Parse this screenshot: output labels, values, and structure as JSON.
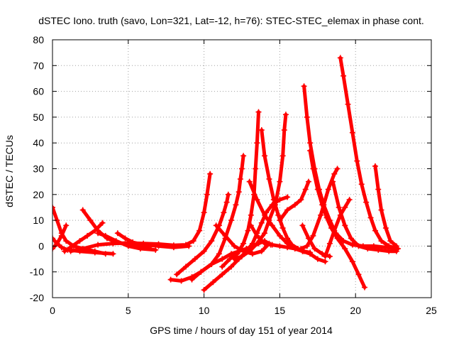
{
  "chart_data": {
    "type": "scatter",
    "title": "dSTEC Iono. truth (savo, Lon=321, Lat=-12, h=76): STEC-STEC_elemax in phase cont.",
    "xlabel": "GPS time / hours of day 151 of year 2014",
    "ylabel": "dSTEC  / TECUs",
    "xlim": [
      0,
      25
    ],
    "ylim": [
      -20,
      80
    ],
    "xticks": [
      0,
      5,
      10,
      15,
      20,
      25
    ],
    "yticks": [
      -20,
      -10,
      0,
      10,
      20,
      30,
      40,
      50,
      60,
      70,
      80
    ],
    "grid": true,
    "marker": "plus",
    "color": "#ff0000",
    "series": [
      {
        "points": [
          [
            0.0,
            15
          ],
          [
            0.3,
            10
          ],
          [
            0.6,
            5
          ],
          [
            0.9,
            2
          ],
          [
            1.4,
            0
          ],
          [
            2.0,
            -1
          ],
          [
            2.8,
            -2
          ],
          [
            3.5,
            -3
          ]
        ]
      },
      {
        "points": [
          [
            0.0,
            3
          ],
          [
            0.3,
            1
          ],
          [
            0.6,
            -0.5
          ],
          [
            1.0,
            -1.5
          ],
          [
            1.8,
            -2
          ],
          [
            2.8,
            -2.5
          ],
          [
            4.0,
            -3
          ]
        ]
      },
      {
        "points": [
          [
            0.0,
            -1
          ],
          [
            0.3,
            1
          ],
          [
            0.6,
            4
          ],
          [
            0.9,
            8
          ]
        ]
      },
      {
        "points": [
          [
            0.8,
            -2
          ],
          [
            1.3,
            0
          ],
          [
            1.8,
            2
          ],
          [
            2.3,
            4
          ],
          [
            2.8,
            6
          ],
          [
            3.3,
            9
          ]
        ]
      },
      {
        "points": [
          [
            2.0,
            14
          ],
          [
            2.5,
            10
          ],
          [
            3.0,
            6
          ],
          [
            3.6,
            3
          ],
          [
            4.2,
            1.5
          ],
          [
            5.0,
            0.5
          ],
          [
            5.8,
            0
          ],
          [
            6.5,
            0
          ]
        ]
      },
      {
        "points": [
          [
            3.0,
            5
          ],
          [
            3.5,
            4
          ],
          [
            4.2,
            2
          ],
          [
            5.0,
            0
          ],
          [
            5.8,
            -1
          ],
          [
            6.8,
            -1.5
          ]
        ]
      },
      {
        "points": [
          [
            4.3,
            5
          ],
          [
            4.8,
            3
          ],
          [
            5.3,
            1.5
          ],
          [
            6.0,
            0.5
          ],
          [
            7.0,
            0
          ],
          [
            8.0,
            -0.5
          ],
          [
            9.0,
            0
          ]
        ]
      },
      {
        "points": [
          [
            1.2,
            -2
          ],
          [
            2.0,
            -1
          ],
          [
            3.0,
            0.5
          ],
          [
            4.0,
            1
          ],
          [
            5.0,
            1.2
          ],
          [
            6.0,
            1
          ],
          [
            7.0,
            0.8
          ],
          [
            8.0,
            0.3
          ],
          [
            8.8,
            0.5
          ],
          [
            9.3,
            2
          ],
          [
            9.7,
            6
          ],
          [
            10.0,
            13
          ],
          [
            10.2,
            20
          ],
          [
            10.4,
            28
          ]
        ]
      },
      {
        "points": [
          [
            7.8,
            -13
          ],
          [
            8.5,
            -13.5
          ],
          [
            9.2,
            -12
          ],
          [
            9.8,
            -10
          ],
          [
            10.5,
            -7
          ],
          [
            11.0,
            -3
          ],
          [
            11.4,
            3
          ],
          [
            11.8,
            10
          ],
          [
            12.1,
            16
          ],
          [
            12.3,
            21
          ],
          [
            12.4,
            26
          ],
          [
            12.5,
            30
          ],
          [
            12.6,
            35
          ]
        ]
      },
      {
        "points": [
          [
            8.2,
            -11
          ],
          [
            8.8,
            -8
          ],
          [
            9.4,
            -5
          ],
          [
            10.0,
            -2
          ],
          [
            10.5,
            2
          ],
          [
            11.0,
            8
          ],
          [
            11.3,
            13
          ],
          [
            11.5,
            17
          ],
          [
            11.6,
            20
          ]
        ]
      },
      {
        "points": [
          [
            9.2,
            -13
          ],
          [
            9.8,
            -10
          ],
          [
            10.5,
            -7
          ],
          [
            11.2,
            -5
          ],
          [
            11.8,
            -3
          ],
          [
            12.3,
            -2
          ],
          [
            12.8,
            -1
          ],
          [
            13.2,
            0
          ],
          [
            13.6,
            1
          ],
          [
            14.0,
            2
          ],
          [
            14.4,
            0.5
          ]
        ]
      },
      {
        "points": [
          [
            10.0,
            -17
          ],
          [
            10.6,
            -14
          ],
          [
            11.2,
            -11
          ],
          [
            11.8,
            -8
          ],
          [
            12.3,
            -5
          ],
          [
            12.8,
            -2
          ],
          [
            13.2,
            1
          ],
          [
            13.5,
            5
          ],
          [
            13.8,
            9
          ],
          [
            14.1,
            13
          ],
          [
            14.5,
            16
          ],
          [
            15.0,
            18
          ],
          [
            15.5,
            19
          ]
        ]
      },
      {
        "points": [
          [
            11.2,
            -8
          ],
          [
            11.7,
            -5
          ],
          [
            12.2,
            -3
          ],
          [
            12.6,
            1
          ],
          [
            12.9,
            6
          ],
          [
            13.1,
            12
          ],
          [
            13.3,
            20
          ],
          [
            13.4,
            30
          ],
          [
            13.5,
            40
          ],
          [
            13.6,
            52
          ]
        ]
      },
      {
        "points": [
          [
            12.0,
            -5
          ],
          [
            12.5,
            -4
          ],
          [
            13.0,
            -2
          ],
          [
            13.5,
            1
          ],
          [
            14.0,
            5
          ],
          [
            14.3,
            10
          ],
          [
            14.7,
            16
          ],
          [
            15.0,
            25
          ],
          [
            15.2,
            35
          ],
          [
            15.3,
            45
          ],
          [
            15.4,
            51
          ]
        ]
      },
      {
        "points": [
          [
            10.8,
            8
          ],
          [
            11.4,
            4
          ],
          [
            12.0,
            0
          ],
          [
            12.6,
            -2
          ],
          [
            13.2,
            -3
          ],
          [
            13.8,
            -2
          ],
          [
            14.3,
            1
          ]
        ]
      },
      {
        "points": [
          [
            13.1,
            8
          ],
          [
            13.5,
            4
          ],
          [
            14.0,
            1
          ],
          [
            14.5,
            0.5
          ],
          [
            15.0,
            0
          ],
          [
            15.5,
            -0.5
          ],
          [
            16.0,
            -1
          ],
          [
            16.5,
            -2
          ],
          [
            17.0,
            -3
          ],
          [
            17.5,
            -5
          ],
          [
            18.0,
            -6
          ]
        ]
      },
      {
        "points": [
          [
            13.8,
            45
          ],
          [
            14.0,
            35
          ],
          [
            14.3,
            26
          ],
          [
            14.6,
            18
          ],
          [
            14.9,
            12
          ],
          [
            15.2,
            7
          ],
          [
            15.5,
            3
          ],
          [
            15.8,
            0.5
          ],
          [
            16.2,
            -1
          ],
          [
            16.6,
            -2
          ],
          [
            17.0,
            -2.5
          ]
        ]
      },
      {
        "points": [
          [
            13.0,
            25
          ],
          [
            13.5,
            18
          ],
          [
            14.0,
            12
          ],
          [
            14.5,
            8
          ],
          [
            15.0,
            4
          ],
          [
            15.5,
            1
          ],
          [
            16.0,
            -1
          ],
          [
            16.5,
            -2
          ]
        ]
      },
      {
        "points": [
          [
            15.0,
            10
          ],
          [
            15.5,
            14
          ],
          [
            16.0,
            16
          ],
          [
            16.4,
            18
          ],
          [
            16.7,
            22
          ],
          [
            16.9,
            25
          ]
        ]
      },
      {
        "points": [
          [
            16.5,
            8
          ],
          [
            16.9,
            3
          ],
          [
            17.3,
            -1
          ],
          [
            17.8,
            -3
          ],
          [
            18.3,
            -4
          ]
        ]
      },
      {
        "points": [
          [
            16.4,
            -1
          ],
          [
            16.8,
            0
          ],
          [
            17.2,
            4
          ],
          [
            17.7,
            12
          ],
          [
            18.2,
            22
          ],
          [
            18.6,
            28
          ],
          [
            18.8,
            30
          ]
        ]
      },
      {
        "points": [
          [
            16.6,
            62
          ],
          [
            16.8,
            50
          ],
          [
            17.0,
            40
          ],
          [
            17.3,
            30
          ],
          [
            17.6,
            22
          ],
          [
            17.9,
            16
          ],
          [
            18.3,
            10
          ],
          [
            18.7,
            5
          ],
          [
            19.2,
            2
          ],
          [
            19.8,
            0.5
          ],
          [
            20.5,
            0
          ],
          [
            21.2,
            0
          ],
          [
            22.0,
            -0.5
          ],
          [
            22.7,
            -1
          ]
        ]
      },
      {
        "points": [
          [
            17.0,
            37
          ],
          [
            17.2,
            30
          ],
          [
            17.5,
            22
          ],
          [
            17.8,
            16
          ],
          [
            18.1,
            11
          ],
          [
            18.4,
            7
          ],
          [
            18.8,
            3
          ],
          [
            19.3,
            -1
          ],
          [
            19.8,
            -6
          ],
          [
            20.2,
            -11
          ],
          [
            20.6,
            -16
          ]
        ]
      },
      {
        "points": [
          [
            18.0,
            -4
          ],
          [
            18.3,
            1
          ],
          [
            18.6,
            6
          ],
          [
            19.0,
            12
          ],
          [
            19.3,
            15
          ],
          [
            19.6,
            18
          ]
        ]
      },
      {
        "points": [
          [
            19.0,
            73
          ],
          [
            19.2,
            66
          ],
          [
            19.5,
            55
          ],
          [
            19.8,
            44
          ],
          [
            20.1,
            33
          ],
          [
            20.4,
            24
          ],
          [
            20.7,
            17
          ],
          [
            21.0,
            11
          ],
          [
            21.3,
            6
          ],
          [
            21.7,
            2
          ],
          [
            22.2,
            0
          ],
          [
            22.8,
            -1
          ]
        ]
      },
      {
        "points": [
          [
            18.5,
            25
          ],
          [
            18.9,
            15
          ],
          [
            19.3,
            8
          ],
          [
            19.7,
            3
          ],
          [
            20.2,
            0
          ],
          [
            20.8,
            -1
          ],
          [
            21.5,
            -1.5
          ],
          [
            22.2,
            -2
          ],
          [
            22.7,
            -2
          ]
        ]
      },
      {
        "points": [
          [
            21.3,
            31
          ],
          [
            21.5,
            22
          ],
          [
            21.7,
            14
          ],
          [
            22.0,
            7
          ],
          [
            22.3,
            2
          ],
          [
            22.7,
            0
          ]
        ]
      }
    ]
  }
}
